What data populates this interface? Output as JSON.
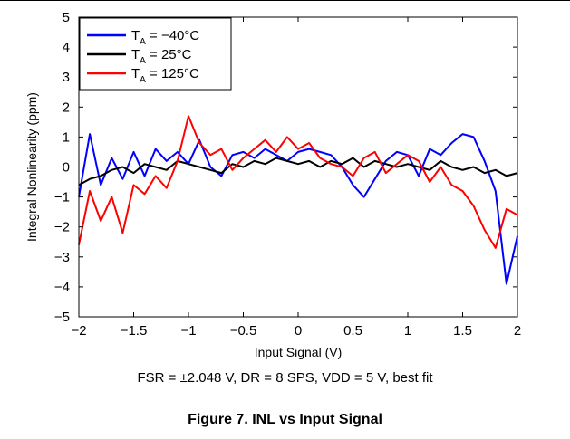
{
  "chart_data": {
    "type": "line",
    "xlabel": "Input Signal (V)",
    "ylabel": "Integral Nonlinearity (ppm)",
    "xlim": [
      -2,
      2
    ],
    "ylim": [
      -5,
      5
    ],
    "xticks": [
      "−2",
      "−1.5",
      "−1",
      "−0.5",
      "0",
      "0.5",
      "1",
      "1.5",
      "2"
    ],
    "yticks": [
      "−5",
      "−4",
      "−3",
      "−2",
      "−1",
      "0",
      "1",
      "2",
      "3",
      "4",
      "5"
    ],
    "grid": false,
    "legend_position": "top-left",
    "series": [
      {
        "name": "T_A = −40°C",
        "name_main": "T",
        "name_sub": "A",
        "name_rest": " = −40°C",
        "color": "#0000ff",
        "x": [
          -2.0,
          -1.9,
          -1.8,
          -1.7,
          -1.6,
          -1.5,
          -1.4,
          -1.3,
          -1.2,
          -1.1,
          -1.0,
          -0.9,
          -0.8,
          -0.7,
          -0.6,
          -0.5,
          -0.4,
          -0.3,
          -0.2,
          -0.1,
          0.0,
          0.1,
          0.2,
          0.3,
          0.4,
          0.5,
          0.6,
          0.7,
          0.8,
          0.9,
          1.0,
          1.1,
          1.2,
          1.3,
          1.4,
          1.5,
          1.6,
          1.7,
          1.8,
          1.9,
          2.0
        ],
        "y": [
          -1.0,
          1.1,
          -0.6,
          0.3,
          -0.4,
          0.5,
          -0.3,
          0.6,
          0.2,
          0.5,
          0.1,
          0.9,
          0.0,
          -0.3,
          0.4,
          0.5,
          0.3,
          0.6,
          0.4,
          0.2,
          0.5,
          0.6,
          0.5,
          0.4,
          0.0,
          -0.6,
          -1.0,
          -0.4,
          0.2,
          0.5,
          0.4,
          -0.3,
          0.6,
          0.4,
          0.8,
          1.1,
          1.0,
          0.2,
          -0.8,
          -3.9,
          -2.3
        ]
      },
      {
        "name": "T_A = 25°C",
        "name_main": "T",
        "name_sub": "A",
        "name_rest": " = 25°C",
        "color": "#000000",
        "x": [
          -2.0,
          -1.9,
          -1.8,
          -1.7,
          -1.6,
          -1.5,
          -1.4,
          -1.3,
          -1.2,
          -1.1,
          -1.0,
          -0.9,
          -0.8,
          -0.7,
          -0.6,
          -0.5,
          -0.4,
          -0.3,
          -0.2,
          -0.1,
          0.0,
          0.1,
          0.2,
          0.3,
          0.4,
          0.5,
          0.6,
          0.7,
          0.8,
          0.9,
          1.0,
          1.1,
          1.2,
          1.3,
          1.4,
          1.5,
          1.6,
          1.7,
          1.8,
          1.9,
          2.0
        ],
        "y": [
          -0.6,
          -0.4,
          -0.3,
          -0.1,
          0.0,
          -0.2,
          0.1,
          0.0,
          -0.1,
          0.2,
          0.1,
          0.0,
          -0.1,
          -0.2,
          0.1,
          0.0,
          0.2,
          0.1,
          0.3,
          0.2,
          0.1,
          0.2,
          0.0,
          0.2,
          0.1,
          0.3,
          0.0,
          0.2,
          0.1,
          0.0,
          0.1,
          0.0,
          -0.1,
          0.2,
          0.0,
          -0.1,
          0.0,
          -0.2,
          -0.1,
          -0.3,
          -0.2
        ]
      },
      {
        "name": "T_A = 125°C",
        "name_main": "T",
        "name_sub": "A",
        "name_rest": " = 125°C",
        "color": "#ff0000",
        "x": [
          -2.0,
          -1.9,
          -1.8,
          -1.7,
          -1.6,
          -1.5,
          -1.4,
          -1.3,
          -1.2,
          -1.1,
          -1.0,
          -0.9,
          -0.8,
          -0.7,
          -0.6,
          -0.5,
          -0.4,
          -0.3,
          -0.2,
          -0.1,
          0.0,
          0.1,
          0.2,
          0.3,
          0.4,
          0.5,
          0.6,
          0.7,
          0.8,
          0.9,
          1.0,
          1.1,
          1.2,
          1.3,
          1.4,
          1.5,
          1.6,
          1.7,
          1.8,
          1.9,
          2.0
        ],
        "y": [
          -2.6,
          -0.8,
          -1.8,
          -1.0,
          -2.2,
          -0.6,
          -0.9,
          -0.3,
          -0.7,
          0.2,
          1.7,
          0.8,
          0.4,
          0.6,
          -0.1,
          0.3,
          0.6,
          0.9,
          0.5,
          1.0,
          0.6,
          0.8,
          0.3,
          0.1,
          0.0,
          -0.3,
          0.3,
          0.5,
          -0.2,
          0.1,
          0.4,
          0.2,
          -0.5,
          0.0,
          -0.6,
          -0.8,
          -1.3,
          -2.1,
          -2.7,
          -1.4,
          -1.6
        ]
      }
    ]
  },
  "subtitle": "FSR = ±2.048 V, DR = 8 SPS, VDD = 5 V, best fit",
  "caption": "Figure 7. INL vs Input Signal"
}
